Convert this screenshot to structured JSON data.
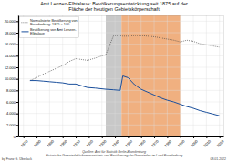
{
  "chart_data": {
    "type": "line",
    "title": "Amt Lenzen-Elbtalaue: Bevölkerungsentwicklung seit 1875 auf der\nFläche der heutigen Gebietskörperschaft",
    "x": [
      1875,
      1880,
      1885,
      1890,
      1895,
      1900,
      1905,
      1910,
      1919,
      1925,
      1933,
      1939,
      1944,
      1946,
      1950,
      1955,
      1960,
      1965,
      1970,
      1975,
      1980,
      1985,
      1990,
      1995,
      2000,
      2005,
      2010,
      2015,
      2020
    ],
    "series": [
      {
        "name": "Normalisierte Bevölkerung von\nBrandenburg: 1875 = 100",
        "color": "#444444",
        "line_style": "dotted",
        "values": [
          9700,
          10200,
          10800,
          11300,
          11800,
          12300,
          13000,
          13500,
          13200,
          13600,
          14200,
          17500,
          17500,
          17400,
          17400,
          17500,
          17500,
          17400,
          17300,
          17100,
          16900,
          16700,
          16400,
          16700,
          16500,
          16100,
          15900,
          15700,
          15500
        ]
      },
      {
        "name": "Bevölkerung von Amt Lenzen-\nElbtalaue",
        "color": "#1a4f9c",
        "line_style": "solid",
        "values": [
          9700,
          9700,
          9600,
          9500,
          9400,
          9300,
          9100,
          9100,
          8500,
          8400,
          8200,
          8100,
          8000,
          10500,
          10200,
          9000,
          8200,
          7700,
          7200,
          6700,
          6300,
          6000,
          5600,
          5200,
          4900,
          4500,
          4200,
          3900,
          3600
        ]
      }
    ],
    "shaded_regions": [
      {
        "start": 1933,
        "end": 1945,
        "color": "#c8c8c8"
      },
      {
        "start": 1945,
        "end": 1990,
        "color": "#f0b080"
      }
    ],
    "xlim": [
      1866,
      2023
    ],
    "xticks": [
      1870,
      1880,
      1890,
      1900,
      1910,
      1920,
      1930,
      1940,
      1950,
      1960,
      1970,
      1980,
      1990,
      2000,
      2010,
      2020
    ],
    "ylim": [
      0,
      21000
    ],
    "yticks": [
      0,
      {
        "value": 2000,
        "label": "2.000"
      },
      {
        "value": 4000,
        "label": "4.000"
      },
      {
        "value": 6000,
        "label": "6.000"
      },
      {
        "value": 8000,
        "label": "8.000"
      },
      {
        "value": 10000,
        "label": "10.000"
      },
      {
        "value": 12000,
        "label": "12.000"
      },
      {
        "value": 14000,
        "label": "14.000"
      },
      {
        "value": 16000,
        "label": "16.000"
      },
      {
        "value": 18000,
        "label": "18.000"
      },
      {
        "value": 20000,
        "label": "20.000"
      }
    ],
    "grid": true,
    "legend": "upper left",
    "source": "Quellen: Amt für Statistik Berlin-Brandenburg\nHistorische Gemeindeflächenverzeichnis und Bevölkerung der Gemeinden im Land Brandenburg",
    "author": "by Franz G. Überlack",
    "date": "08.01.2022"
  }
}
